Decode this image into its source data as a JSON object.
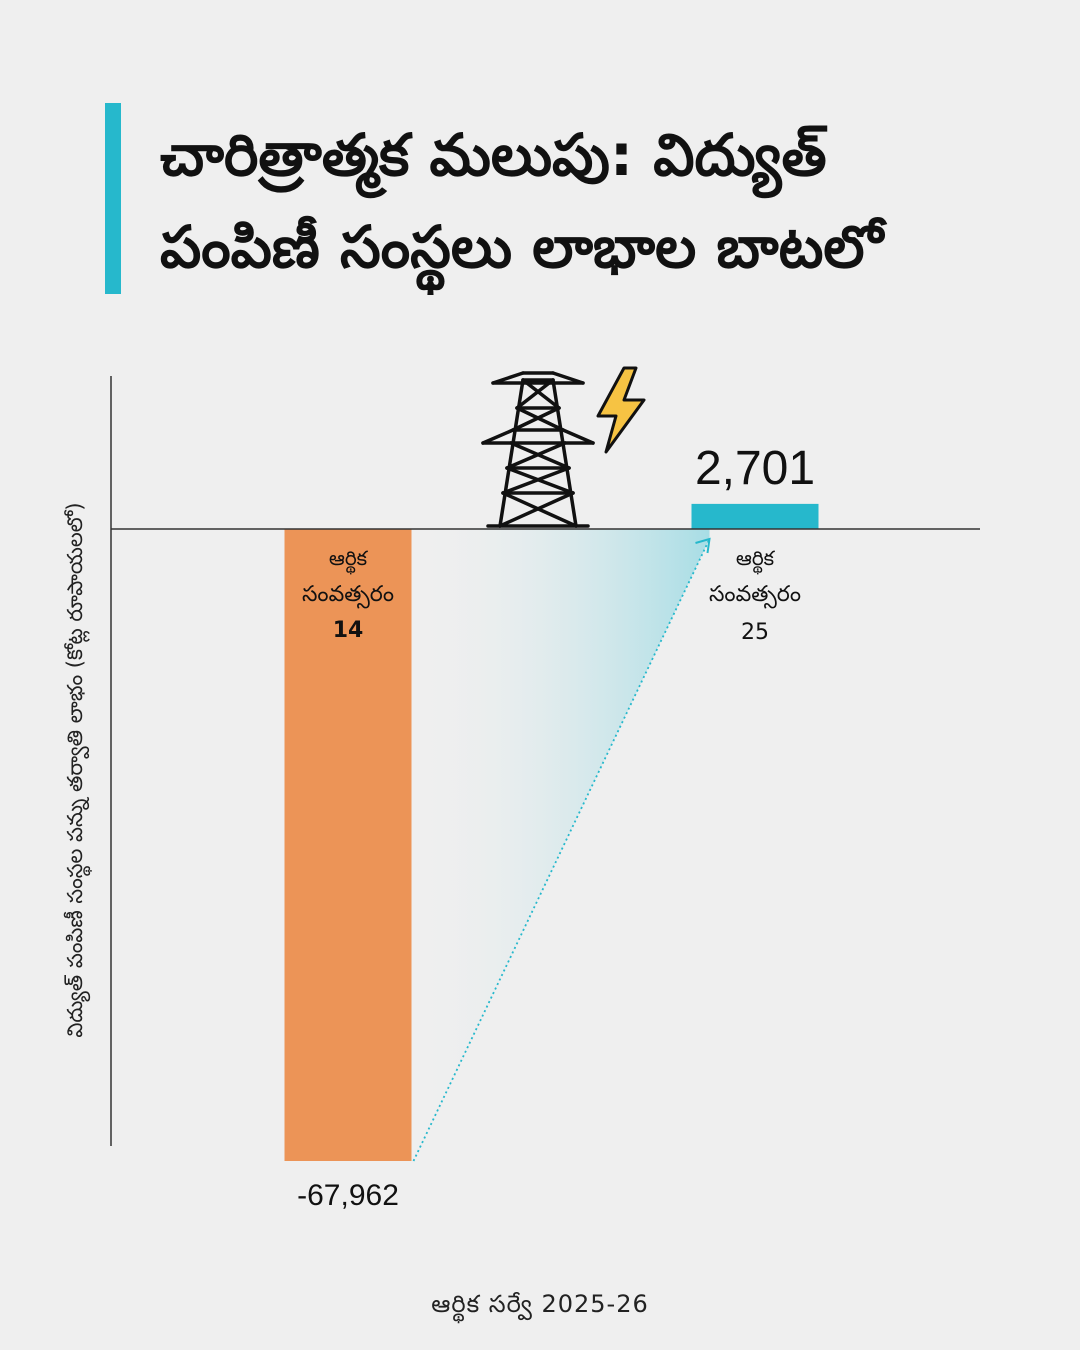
{
  "title": "చారిత్రాత్మక మలుపు: విద్యుత్ పంపిణీ సంస్థలు లాభాల బాటలో",
  "source": "ఆర్థిక సర్వే 2025-26",
  "colors": {
    "negative_bar": "#ec9457",
    "positive_bar": "#26b8cc",
    "accent": "#26b8cc",
    "axis": "#333333"
  },
  "icons": [
    "transmission-tower-icon",
    "lightning-bolt-icon"
  ],
  "chart_data": {
    "type": "bar",
    "ylabel": "విద్యుత్ పంపిణీ సంస్థల పన్ను తర్వాతి లాభం (కోట్ల రూపాయలలో)",
    "categories": [
      {
        "line1": "ఆర్థిక",
        "line2": "సంవత్సరం",
        "line3": "14"
      },
      {
        "line1": "ఆర్థిక",
        "line2": "సంవత్సరం",
        "line3": "25"
      }
    ],
    "values": [
      -67962,
      2701
    ],
    "value_labels": [
      "-67,962",
      "2,701"
    ],
    "grid": false,
    "legend": "none"
  }
}
